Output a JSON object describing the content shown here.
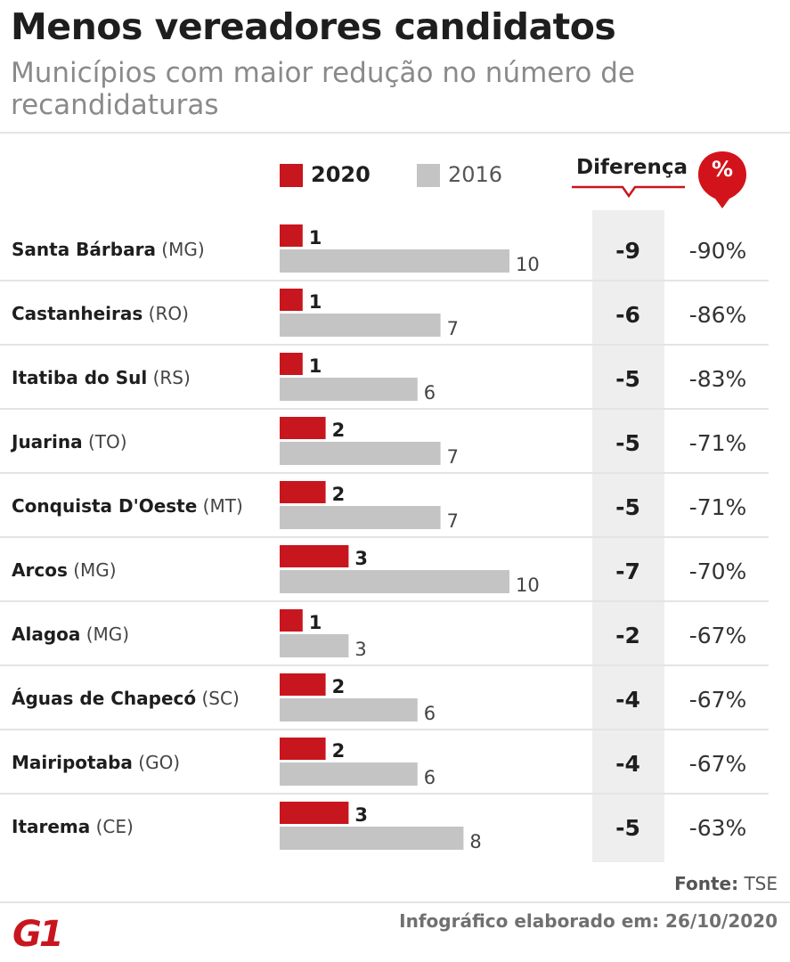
{
  "title": "Menos vereadores candidatos",
  "subtitle": "Municípios com maior redução no número de recandidaturas",
  "legend": {
    "label_2020": "2020",
    "label_2016": "2016"
  },
  "columns": {
    "difference_header": "Diferença",
    "percent_header": "%"
  },
  "source": {
    "label": "Fonte:",
    "value": "TSE"
  },
  "footer_note": "Infográfico elaborado em: 26/10/2020",
  "logo_text": "G1",
  "colors": {
    "series_2020": "#c8161e",
    "series_2016": "#c4c4c4",
    "diff_column_bg": "#eeeeee",
    "divider": "#e4e4e4"
  },
  "chart_data": {
    "type": "bar",
    "orientation": "horizontal",
    "grouping": "grouped",
    "title": "Menos vereadores candidatos",
    "subtitle": "Municípios com maior redução no número de recandidaturas",
    "categories": [
      {
        "name": "Santa Bárbara",
        "uf": "(MG)"
      },
      {
        "name": "Castanheiras",
        "uf": "(RO)"
      },
      {
        "name": "Itatiba do Sul",
        "uf": "(RS)"
      },
      {
        "name": "Juarina",
        "uf": "(TO)"
      },
      {
        "name": "Conquista D'Oeste",
        "uf": "(MT)"
      },
      {
        "name": "Arcos",
        "uf": "(MG)"
      },
      {
        "name": "Alagoa",
        "uf": "(MG)"
      },
      {
        "name": "Águas de Chapecó",
        "uf": "(SC)"
      },
      {
        "name": "Mairipotaba",
        "uf": "(GO)"
      },
      {
        "name": "Itarema",
        "uf": "(CE)"
      }
    ],
    "series": [
      {
        "name": "2020",
        "color": "#c8161e",
        "values": [
          1,
          1,
          1,
          2,
          2,
          3,
          1,
          2,
          2,
          3
        ]
      },
      {
        "name": "2016",
        "color": "#c4c4c4",
        "values": [
          10,
          7,
          6,
          7,
          7,
          10,
          3,
          6,
          6,
          8
        ]
      }
    ],
    "difference": [
      "-9",
      "-6",
      "-5",
      "-5",
      "-5",
      "-7",
      "-2",
      "-4",
      "-4",
      "-5"
    ],
    "percent_change": [
      "-90%",
      "-86%",
      "-83%",
      "-71%",
      "-71%",
      "-70%",
      "-67%",
      "-67%",
      "-67%",
      "-63%"
    ],
    "xlim": [
      0,
      10
    ],
    "grid": false,
    "legend_position": "top"
  }
}
